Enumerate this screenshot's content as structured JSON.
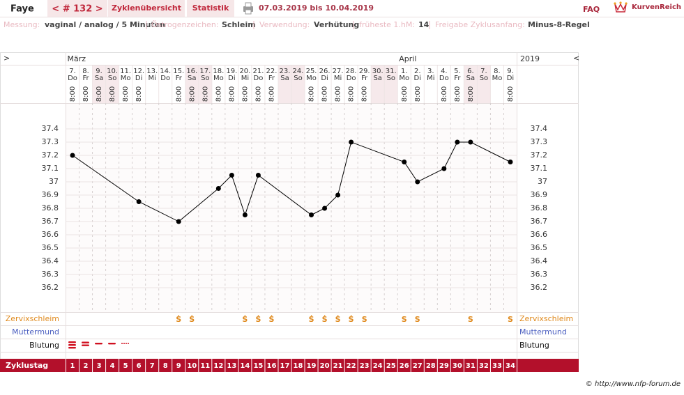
{
  "header": {
    "user": "Faye",
    "cycle_nav": "< # 132 >",
    "tabs": [
      "Zyklenübersicht",
      "Statistik"
    ],
    "date_range": "07.03.2019 bis 10.04.2019",
    "faq": "FAQ",
    "logo": "KurvenReich"
  },
  "info": [
    {
      "label": "Messung:",
      "value": "vaginal / analog / 5 Minuten"
    },
    {
      "label": "Östrogenzeichen:",
      "value": "Schleim"
    },
    {
      "label": "Verwendung:",
      "value": "Verhütung"
    },
    {
      "label": "früheste 1.hM:",
      "value": "14"
    },
    {
      "label": "Freigabe Zyklusanfang:",
      "value": "Minus-8-Regel"
    }
  ],
  "chart_data": {
    "type": "line",
    "nav_left": ">",
    "nav_right": "<",
    "year": "2019",
    "months": [
      "März",
      "April"
    ],
    "days": [
      "7.",
      "8.",
      "9.",
      "10.",
      "11.",
      "12.",
      "13.",
      "14.",
      "15.",
      "16.",
      "17.",
      "18.",
      "19.",
      "20.",
      "21.",
      "22.",
      "23.",
      "24.",
      "25.",
      "26.",
      "27.",
      "28.",
      "29.",
      "30.",
      "31.",
      "1.",
      "2.",
      "3.",
      "4.",
      "5.",
      "6.",
      "7.",
      "8.",
      "9."
    ],
    "weekdays": [
      "Do",
      "Fr",
      "Sa",
      "So",
      "Mo",
      "Di",
      "Mi",
      "Do",
      "Fr",
      "Sa",
      "So",
      "Mo",
      "Di",
      "Mi",
      "Do",
      "Fr",
      "Sa",
      "So",
      "Mo",
      "Di",
      "Mi",
      "Do",
      "Fr",
      "Sa",
      "So",
      "Mo",
      "Di",
      "Mi",
      "Do",
      "Fr",
      "Sa",
      "So",
      "Mo",
      "Di"
    ],
    "times": [
      "8:00",
      "8:00",
      "8:00",
      "8:00",
      "8:00",
      "8:00",
      null,
      null,
      "8:00",
      "8:00",
      "8:00",
      "8:00",
      "8:00",
      "8:00",
      "8:00",
      "8:00",
      null,
      null,
      "8:00",
      "8:00",
      "8:00",
      "8:00",
      "8:00",
      null,
      null,
      "8:00",
      "8:00",
      null,
      "8:00",
      "8:00",
      "8:00",
      null,
      null,
      "8:00"
    ],
    "x": [
      1,
      6,
      9,
      12,
      13,
      14,
      15,
      19,
      20,
      21,
      22,
      26,
      27,
      29,
      30,
      31,
      34
    ],
    "values": [
      37.2,
      36.85,
      36.7,
      36.95,
      37.05,
      36.75,
      37.05,
      36.75,
      36.8,
      36.9,
      37.3,
      37.15,
      37.0,
      37.1,
      37.3,
      37.3,
      37.15
    ],
    "color": "#000000",
    "xlim": [
      0.5,
      34.5
    ],
    "ylim": [
      36.0,
      37.6
    ],
    "yticks": [
      36.2,
      36.3,
      36.4,
      36.5,
      36.6,
      36.7,
      36.8,
      36.9,
      37,
      37.1,
      37.2,
      37.3,
      37.4
    ],
    "grid": true,
    "cervix_label": "Zervixschleim",
    "cervix": [
      null,
      null,
      null,
      null,
      null,
      null,
      null,
      null,
      "Ṡ",
      "Ṡ",
      null,
      null,
      null,
      "Ṡ",
      "Ṡ",
      "Ṡ",
      null,
      null,
      "Ṡ",
      "Ṡ",
      "Ṡ",
      "Ṡ",
      "S",
      null,
      null,
      "S",
      "S",
      null,
      null,
      null,
      "S",
      null,
      null,
      "S"
    ],
    "cervix_color": "#e08a1e",
    "cervix_position_label": "Muttermund",
    "bleeding_label": "Blutung",
    "cycle_day_label": "Zyklustag",
    "cycle_days": [
      1,
      2,
      3,
      4,
      5,
      6,
      7,
      8,
      9,
      10,
      11,
      12,
      13,
      14,
      15,
      16,
      17,
      18,
      19,
      20,
      21,
      22,
      23,
      24,
      25,
      26,
      27,
      28,
      29,
      30,
      31,
      32,
      33,
      34
    ]
  },
  "footer": "© http://www.nfp-forum.de"
}
